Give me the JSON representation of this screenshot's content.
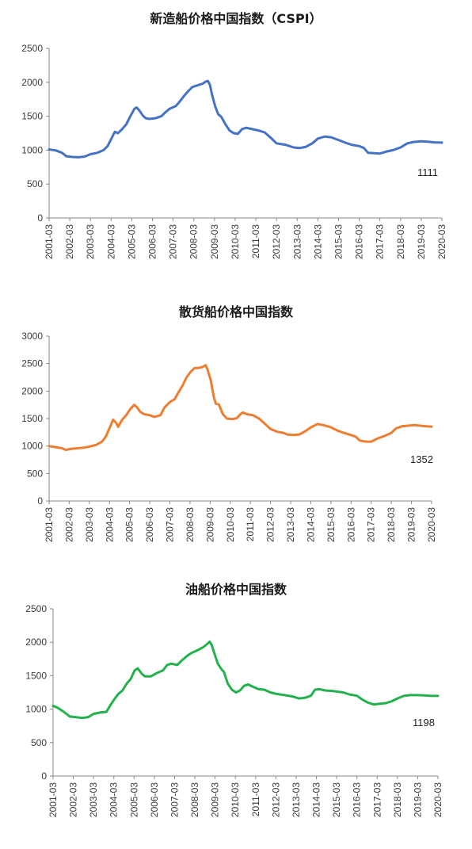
{
  "chart_data": [
    {
      "type": "line",
      "title": "新造船价格中国指数（CSPI）",
      "color": "#4472C4",
      "ylim": [
        0,
        2500
      ],
      "yticks": [
        0,
        500,
        1000,
        1500,
        2000,
        2500
      ],
      "xlim": [
        2001.17,
        2020.17
      ],
      "xticks": [
        "2001-03",
        "2002-03",
        "2003-03",
        "2004-03",
        "2005-03",
        "2006-03",
        "2007-03",
        "2008-03",
        "2009-03",
        "2010-03",
        "2011-03",
        "2012-03",
        "2013-03",
        "2014-03",
        "2015-03",
        "2016-03",
        "2017-03",
        "2018-03",
        "2019-03",
        "2020-03"
      ],
      "end_label": "1111",
      "points": [
        [
          2001.17,
          1010
        ],
        [
          2001.5,
          995
        ],
        [
          2001.8,
          960
        ],
        [
          2002.0,
          910
        ],
        [
          2002.3,
          900
        ],
        [
          2002.6,
          895
        ],
        [
          2002.9,
          905
        ],
        [
          2003.17,
          940
        ],
        [
          2003.5,
          960
        ],
        [
          2003.8,
          1000
        ],
        [
          2004.0,
          1060
        ],
        [
          2004.2,
          1180
        ],
        [
          2004.35,
          1270
        ],
        [
          2004.5,
          1250
        ],
        [
          2004.7,
          1310
        ],
        [
          2004.9,
          1380
        ],
        [
          2005.1,
          1500
        ],
        [
          2005.3,
          1610
        ],
        [
          2005.4,
          1630
        ],
        [
          2005.55,
          1580
        ],
        [
          2005.7,
          1510
        ],
        [
          2005.85,
          1470
        ],
        [
          2006.0,
          1460
        ],
        [
          2006.3,
          1470
        ],
        [
          2006.6,
          1500
        ],
        [
          2006.8,
          1560
        ],
        [
          2007.0,
          1610
        ],
        [
          2007.3,
          1650
        ],
        [
          2007.5,
          1720
        ],
        [
          2007.7,
          1800
        ],
        [
          2007.9,
          1870
        ],
        [
          2008.1,
          1930
        ],
        [
          2008.4,
          1960
        ],
        [
          2008.6,
          1980
        ],
        [
          2008.75,
          2010
        ],
        [
          2008.85,
          2020
        ],
        [
          2008.95,
          1960
        ],
        [
          2009.05,
          1820
        ],
        [
          2009.2,
          1650
        ],
        [
          2009.35,
          1530
        ],
        [
          2009.5,
          1490
        ],
        [
          2009.7,
          1380
        ],
        [
          2009.9,
          1290
        ],
        [
          2010.1,
          1250
        ],
        [
          2010.3,
          1240
        ],
        [
          2010.5,
          1310
        ],
        [
          2010.7,
          1330
        ],
        [
          2011.0,
          1310
        ],
        [
          2011.3,
          1290
        ],
        [
          2011.6,
          1260
        ],
        [
          2011.9,
          1180
        ],
        [
          2012.17,
          1100
        ],
        [
          2012.6,
          1080
        ],
        [
          2013.0,
          1040
        ],
        [
          2013.3,
          1030
        ],
        [
          2013.6,
          1050
        ],
        [
          2013.9,
          1100
        ],
        [
          2014.17,
          1170
        ],
        [
          2014.5,
          1200
        ],
        [
          2014.8,
          1190
        ],
        [
          2015.17,
          1150
        ],
        [
          2015.5,
          1110
        ],
        [
          2015.8,
          1080
        ],
        [
          2016.17,
          1060
        ],
        [
          2016.4,
          1030
        ],
        [
          2016.6,
          960
        ],
        [
          2016.9,
          955
        ],
        [
          2017.17,
          950
        ],
        [
          2017.5,
          980
        ],
        [
          2017.8,
          1000
        ],
        [
          2018.17,
          1040
        ],
        [
          2018.5,
          1100
        ],
        [
          2018.8,
          1120
        ],
        [
          2019.17,
          1130
        ],
        [
          2019.5,
          1125
        ],
        [
          2019.8,
          1115
        ],
        [
          2020.17,
          1111
        ]
      ]
    },
    {
      "type": "line",
      "title": "散货船价格中国指数",
      "color": "#ED7D31",
      "ylim": [
        0,
        3000
      ],
      "yticks": [
        0,
        500,
        1000,
        1500,
        2000,
        2500,
        3000
      ],
      "xlim": [
        2001.17,
        2020.17
      ],
      "xticks": [
        "2001-03",
        "2002-03",
        "2003-03",
        "2004-03",
        "2005-03",
        "2006-03",
        "2007-03",
        "2008-03",
        "2009-03",
        "2010-03",
        "2011-03",
        "2012-03",
        "2013-03",
        "2014-03",
        "2015-03",
        "2016-03",
        "2017-03",
        "2018-03",
        "2019-03",
        "2020-03"
      ],
      "end_label": "1352",
      "points": [
        [
          2001.17,
          1000
        ],
        [
          2001.5,
          980
        ],
        [
          2001.8,
          960
        ],
        [
          2002.0,
          930
        ],
        [
          2002.3,
          950
        ],
        [
          2002.6,
          960
        ],
        [
          2002.9,
          970
        ],
        [
          2003.17,
          990
        ],
        [
          2003.5,
          1020
        ],
        [
          2003.8,
          1080
        ],
        [
          2004.0,
          1180
        ],
        [
          2004.2,
          1350
        ],
        [
          2004.35,
          1480
        ],
        [
          2004.5,
          1420
        ],
        [
          2004.6,
          1350
        ],
        [
          2004.8,
          1480
        ],
        [
          2005.0,
          1560
        ],
        [
          2005.2,
          1670
        ],
        [
          2005.4,
          1750
        ],
        [
          2005.55,
          1700
        ],
        [
          2005.7,
          1620
        ],
        [
          2005.9,
          1580
        ],
        [
          2006.17,
          1560
        ],
        [
          2006.4,
          1530
        ],
        [
          2006.7,
          1560
        ],
        [
          2006.9,
          1700
        ],
        [
          2007.17,
          1800
        ],
        [
          2007.4,
          1850
        ],
        [
          2007.6,
          1980
        ],
        [
          2007.8,
          2100
        ],
        [
          2008.0,
          2250
        ],
        [
          2008.2,
          2350
        ],
        [
          2008.4,
          2420
        ],
        [
          2008.6,
          2420
        ],
        [
          2008.8,
          2440
        ],
        [
          2008.95,
          2470
        ],
        [
          2009.05,
          2380
        ],
        [
          2009.2,
          2200
        ],
        [
          2009.35,
          1900
        ],
        [
          2009.45,
          1770
        ],
        [
          2009.6,
          1760
        ],
        [
          2009.8,
          1580
        ],
        [
          2010.0,
          1500
        ],
        [
          2010.3,
          1490
        ],
        [
          2010.5,
          1510
        ],
        [
          2010.7,
          1590
        ],
        [
          2010.8,
          1610
        ],
        [
          2011.0,
          1580
        ],
        [
          2011.3,
          1560
        ],
        [
          2011.6,
          1500
        ],
        [
          2011.9,
          1400
        ],
        [
          2012.17,
          1310
        ],
        [
          2012.5,
          1260
        ],
        [
          2012.8,
          1240
        ],
        [
          2013.0,
          1210
        ],
        [
          2013.3,
          1200
        ],
        [
          2013.6,
          1210
        ],
        [
          2013.9,
          1270
        ],
        [
          2014.17,
          1340
        ],
        [
          2014.5,
          1400
        ],
        [
          2014.8,
          1380
        ],
        [
          2015.17,
          1340
        ],
        [
          2015.5,
          1280
        ],
        [
          2015.8,
          1240
        ],
        [
          2016.17,
          1200
        ],
        [
          2016.4,
          1170
        ],
        [
          2016.6,
          1100
        ],
        [
          2016.9,
          1080
        ],
        [
          2017.17,
          1080
        ],
        [
          2017.5,
          1140
        ],
        [
          2017.8,
          1180
        ],
        [
          2018.17,
          1240
        ],
        [
          2018.4,
          1320
        ],
        [
          2018.7,
          1360
        ],
        [
          2019.0,
          1370
        ],
        [
          2019.3,
          1380
        ],
        [
          2019.6,
          1370
        ],
        [
          2019.9,
          1360
        ],
        [
          2020.17,
          1352
        ]
      ]
    },
    {
      "type": "line",
      "title": "油船价格中国指数",
      "color": "#22B14C",
      "ylim": [
        0,
        2500
      ],
      "yticks": [
        0,
        500,
        1000,
        1500,
        2000,
        2500
      ],
      "xlim": [
        2001.17,
        2020.17
      ],
      "xticks": [
        "2001-03",
        "2002-03",
        "2003-03",
        "2004-03",
        "2005-03",
        "2006-03",
        "2007-03",
        "2008-03",
        "2009-03",
        "2010-03",
        "2011-03",
        "2012-03",
        "2013-03",
        "2014-03",
        "2015-03",
        "2016-03",
        "2017-03",
        "2018-03",
        "2019-03",
        "2020-03"
      ],
      "end_label": "1198",
      "points": [
        [
          2001.17,
          1050
        ],
        [
          2001.4,
          1020
        ],
        [
          2001.7,
          960
        ],
        [
          2002.0,
          890
        ],
        [
          2002.3,
          880
        ],
        [
          2002.6,
          870
        ],
        [
          2002.9,
          880
        ],
        [
          2003.17,
          930
        ],
        [
          2003.5,
          950
        ],
        [
          2003.8,
          960
        ],
        [
          2004.0,
          1060
        ],
        [
          2004.2,
          1150
        ],
        [
          2004.4,
          1230
        ],
        [
          2004.6,
          1280
        ],
        [
          2004.8,
          1380
        ],
        [
          2005.0,
          1450
        ],
        [
          2005.2,
          1580
        ],
        [
          2005.35,
          1610
        ],
        [
          2005.55,
          1530
        ],
        [
          2005.7,
          1490
        ],
        [
          2006.0,
          1490
        ],
        [
          2006.3,
          1540
        ],
        [
          2006.6,
          1580
        ],
        [
          2006.8,
          1660
        ],
        [
          2007.0,
          1680
        ],
        [
          2007.3,
          1660
        ],
        [
          2007.5,
          1720
        ],
        [
          2007.8,
          1800
        ],
        [
          2008.0,
          1840
        ],
        [
          2008.3,
          1880
        ],
        [
          2008.6,
          1930
        ],
        [
          2008.8,
          1980
        ],
        [
          2008.9,
          2010
        ],
        [
          2009.0,
          1960
        ],
        [
          2009.15,
          1820
        ],
        [
          2009.3,
          1680
        ],
        [
          2009.5,
          1590
        ],
        [
          2009.6,
          1560
        ],
        [
          2009.8,
          1380
        ],
        [
          2010.0,
          1290
        ],
        [
          2010.2,
          1250
        ],
        [
          2010.4,
          1280
        ],
        [
          2010.6,
          1350
        ],
        [
          2010.8,
          1370
        ],
        [
          2011.0,
          1340
        ],
        [
          2011.3,
          1300
        ],
        [
          2011.6,
          1290
        ],
        [
          2011.9,
          1250
        ],
        [
          2012.17,
          1230
        ],
        [
          2012.6,
          1210
        ],
        [
          2013.0,
          1190
        ],
        [
          2013.3,
          1160
        ],
        [
          2013.6,
          1170
        ],
        [
          2013.9,
          1200
        ],
        [
          2014.1,
          1290
        ],
        [
          2014.3,
          1300
        ],
        [
          2014.6,
          1280
        ],
        [
          2015.0,
          1270
        ],
        [
          2015.5,
          1250
        ],
        [
          2015.8,
          1220
        ],
        [
          2016.17,
          1200
        ],
        [
          2016.4,
          1150
        ],
        [
          2016.7,
          1100
        ],
        [
          2017.0,
          1070
        ],
        [
          2017.3,
          1080
        ],
        [
          2017.6,
          1090
        ],
        [
          2017.9,
          1120
        ],
        [
          2018.17,
          1160
        ],
        [
          2018.5,
          1200
        ],
        [
          2018.8,
          1210
        ],
        [
          2019.17,
          1210
        ],
        [
          2019.5,
          1205
        ],
        [
          2019.8,
          1200
        ],
        [
          2020.17,
          1198
        ]
      ]
    }
  ]
}
